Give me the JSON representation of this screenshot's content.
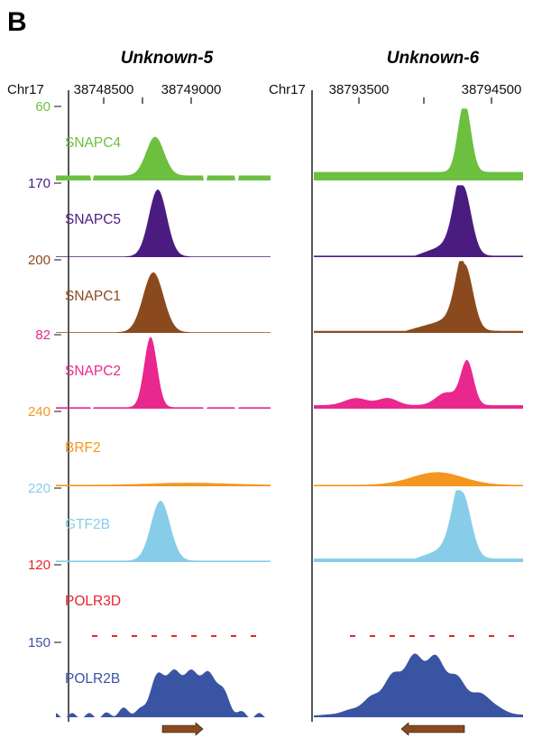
{
  "panel_label": "B",
  "chart_data": {
    "type": "area",
    "panels": [
      {
        "title": "Unknown-5",
        "chrom": "Chr17",
        "tick_labels": [
          "38748500",
          "38749000"
        ],
        "gene": {
          "strand": "+"
        }
      },
      {
        "title": "Unknown-6",
        "chrom": "Chr17",
        "tick_labels": [
          "38793500",
          "38794500"
        ],
        "gene": {
          "strand": "-"
        }
      }
    ],
    "tracks": [
      {
        "name": "SNAPC4",
        "scale": "60",
        "color": "#6dbf3f",
        "peaks": [
          {
            "panel": 0,
            "height": 0.55
          },
          {
            "panel": 1,
            "height": 1.0
          }
        ]
      },
      {
        "name": "SNAPC5",
        "scale": "170",
        "color": "#4b1c80",
        "peaks": [
          {
            "panel": 0,
            "height": 0.95
          },
          {
            "panel": 1,
            "height": 1.0
          }
        ]
      },
      {
        "name": "SNAPC1",
        "scale": "200",
        "color": "#8b4a1e",
        "peaks": [
          {
            "panel": 0,
            "height": 0.85
          },
          {
            "panel": 1,
            "height": 0.95
          }
        ]
      },
      {
        "name": "SNAPC2",
        "scale": "82",
        "color": "#e8288e",
        "peaks": [
          {
            "panel": 0,
            "height": 1.0
          },
          {
            "panel": 1,
            "height": 0.62
          }
        ]
      },
      {
        "name": "BRF2",
        "scale": "240",
        "color": "#f5961e",
        "peaks": [
          {
            "panel": 0,
            "height": 0.03
          },
          {
            "panel": 1,
            "height": 0.18
          }
        ]
      },
      {
        "name": "GTF2B",
        "scale": "220",
        "color": "#87cde9",
        "peaks": [
          {
            "panel": 0,
            "height": 0.85
          },
          {
            "panel": 1,
            "height": 0.95
          }
        ]
      },
      {
        "name": "POLR3D",
        "scale": "120",
        "color": "#e8232b",
        "peaks": [
          {
            "panel": 0,
            "height": 0.0
          },
          {
            "panel": 1,
            "height": 0.0
          }
        ]
      },
      {
        "name": "POLR2B",
        "scale": "150",
        "color": "#3a54a4",
        "peaks": [
          {
            "panel": 0,
            "height": 0.62
          },
          {
            "panel": 1,
            "height": 0.85
          }
        ]
      }
    ]
  }
}
